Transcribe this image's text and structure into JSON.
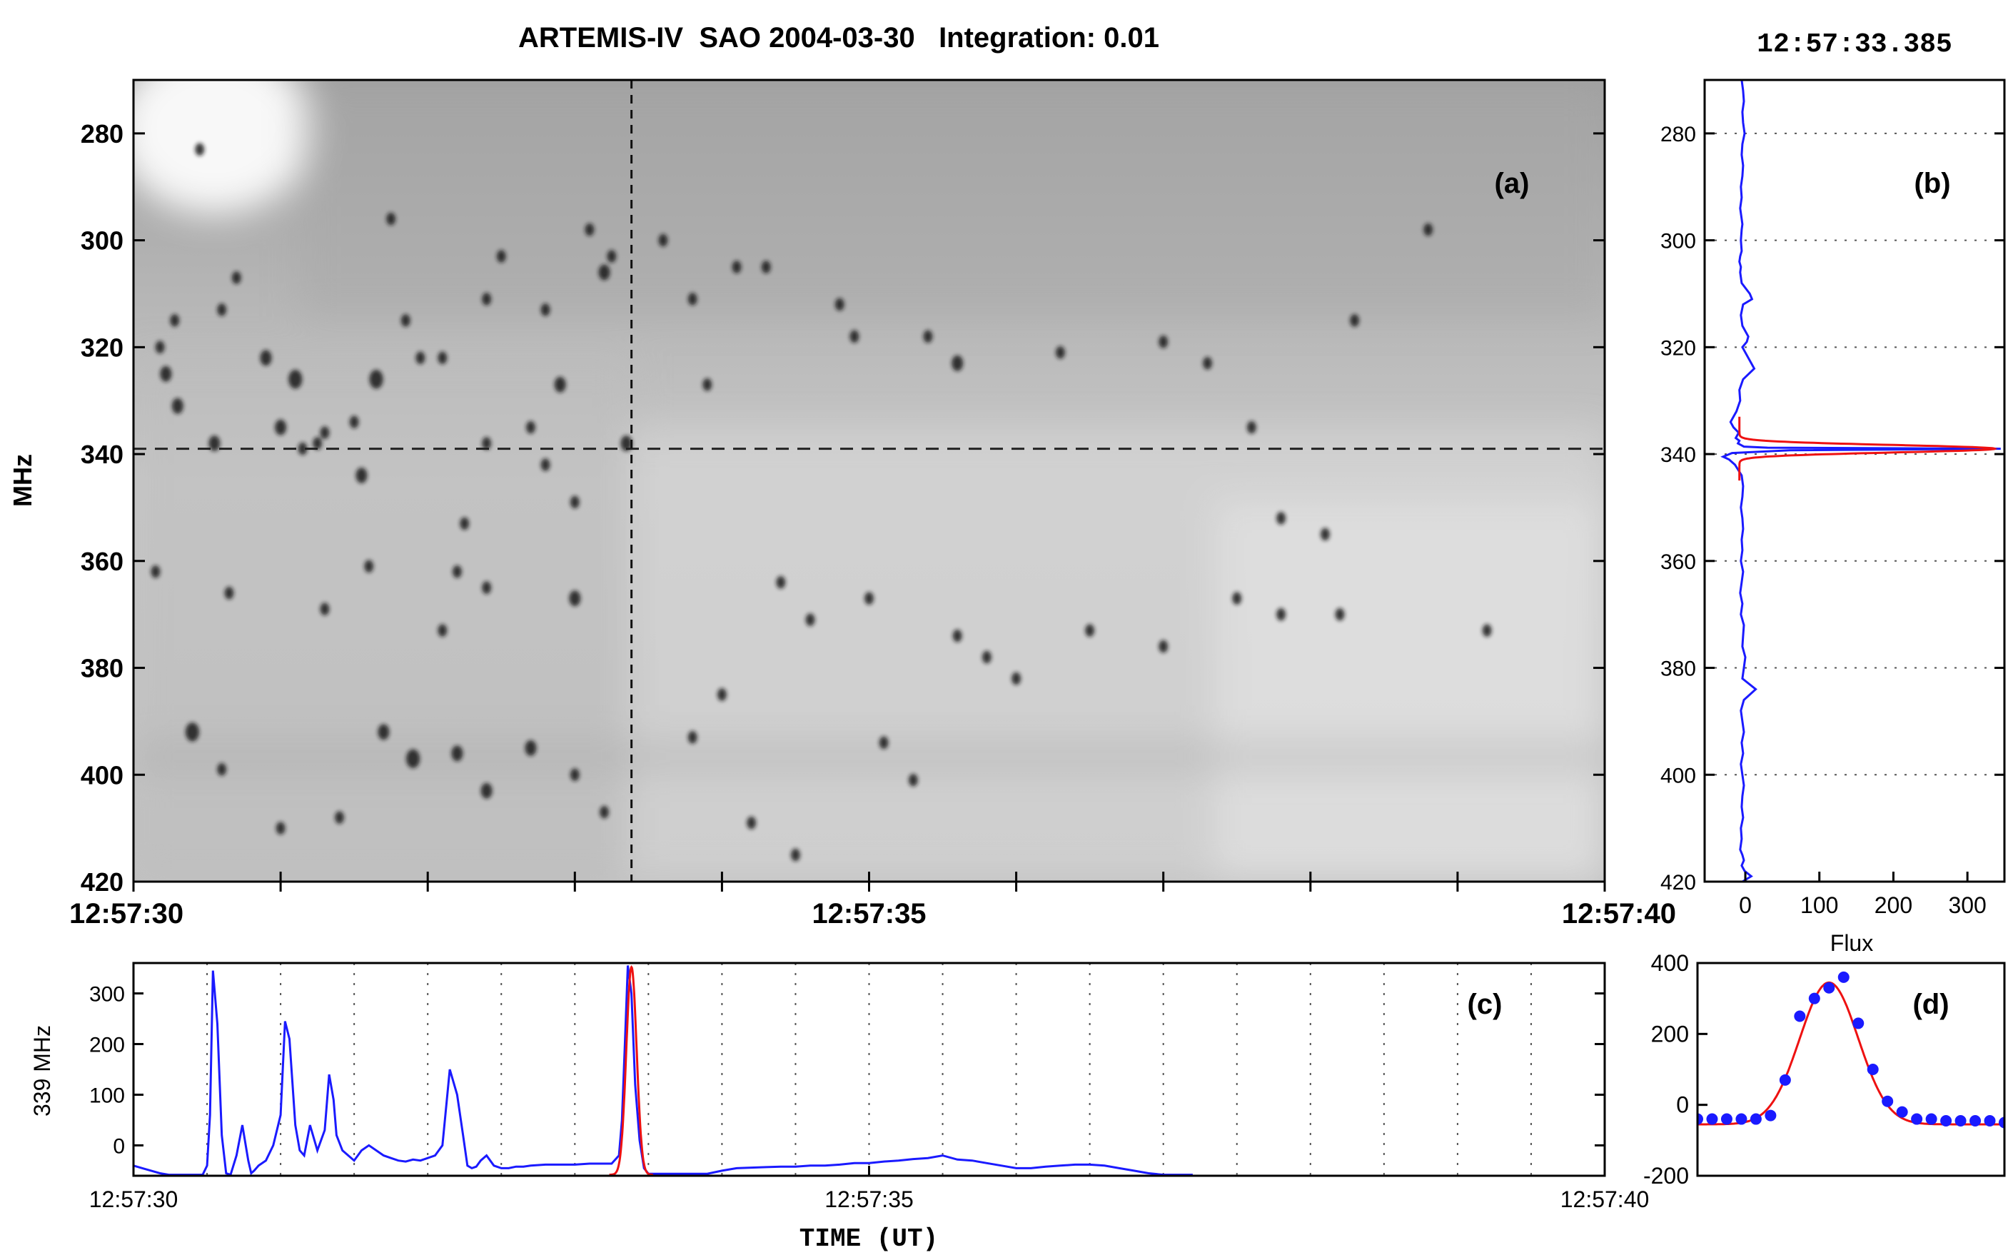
{
  "title": "ARTEMIS-IV  SAO 2004-03-30   Integration: 0.01",
  "timestamp": "12:57:33.385",
  "colors": {
    "series": "#1a1aff",
    "fit": "#ee1111",
    "axis": "#000000",
    "grid": "#555555"
  },
  "chart_data": [
    {
      "panel": "a",
      "label": "(a)",
      "type": "heatmap",
      "xlabel": "",
      "ylabel": "MHz",
      "xlim": [
        0,
        10
      ],
      "ylim": [
        270,
        420
      ],
      "x_ticks": [
        0,
        1,
        2,
        3,
        4,
        5,
        6,
        7,
        8,
        9,
        10
      ],
      "x_ticklabels": [
        {
          "x": 0,
          "label": "12:57:30"
        },
        {
          "x": 5,
          "label": "12:57:35"
        },
        {
          "x": 10,
          "label": "12:57:40"
        }
      ],
      "y_ticks": [
        280,
        300,
        320,
        340,
        360,
        380,
        400,
        420
      ],
      "crosshair": {
        "time_s": 3.385,
        "freq_mhz": 339
      },
      "colormap": "inverted grayscale",
      "spikes": [
        [
          0.45,
          283,
          4
        ],
        [
          0.6,
          313,
          4
        ],
        [
          0.28,
          315,
          4
        ],
        [
          0.18,
          320,
          4
        ],
        [
          0.22,
          325,
          5
        ],
        [
          0.3,
          331,
          5
        ],
        [
          0.55,
          338,
          5
        ],
        [
          0.7,
          307,
          4
        ],
        [
          0.9,
          322,
          5
        ],
        [
          1.0,
          335,
          5
        ],
        [
          1.1,
          326,
          6
        ],
        [
          1.25,
          338,
          4
        ],
        [
          1.15,
          339,
          4
        ],
        [
          1.3,
          336,
          4
        ],
        [
          1.5,
          334,
          4
        ],
        [
          1.55,
          344,
          5
        ],
        [
          1.65,
          326,
          6
        ],
        [
          1.75,
          296,
          4
        ],
        [
          1.85,
          315,
          4
        ],
        [
          1.95,
          322,
          4
        ],
        [
          2.1,
          322,
          4
        ],
        [
          2.4,
          311,
          4
        ],
        [
          2.8,
          313,
          4
        ],
        [
          2.25,
          353,
          4
        ],
        [
          2.5,
          303,
          4
        ],
        [
          2.4,
          338,
          4
        ],
        [
          2.7,
          335,
          4
        ],
        [
          2.9,
          327,
          5
        ],
        [
          2.8,
          342,
          4
        ],
        [
          3.2,
          306,
          5
        ],
        [
          3.0,
          349,
          4
        ],
        [
          1.6,
          361,
          4
        ],
        [
          2.2,
          362,
          4
        ],
        [
          2.4,
          365,
          4
        ],
        [
          3.0,
          367,
          5
        ],
        [
          1.3,
          369,
          4
        ],
        [
          0.65,
          366,
          4
        ],
        [
          0.15,
          362,
          4
        ],
        [
          0.4,
          392,
          6
        ],
        [
          0.6,
          399,
          4
        ],
        [
          1.7,
          392,
          5
        ],
        [
          1.9,
          397,
          6
        ],
        [
          2.2,
          396,
          5
        ],
        [
          2.4,
          403,
          5
        ],
        [
          2.7,
          395,
          5
        ],
        [
          3.0,
          400,
          4
        ],
        [
          3.2,
          407,
          4
        ],
        [
          1.0,
          410,
          4
        ],
        [
          1.4,
          408,
          4
        ],
        [
          3.25,
          303,
          4
        ],
        [
          3.1,
          298,
          4
        ],
        [
          3.6,
          300,
          4
        ],
        [
          3.8,
          311,
          4
        ],
        [
          3.35,
          338,
          5
        ],
        [
          4.1,
          305,
          4
        ],
        [
          4.3,
          305,
          4
        ],
        [
          4.8,
          312,
          4
        ],
        [
          4.9,
          318,
          4
        ],
        [
          5.4,
          318,
          4
        ],
        [
          5.6,
          323,
          5
        ],
        [
          6.3,
          321,
          4
        ],
        [
          7.0,
          319,
          4
        ],
        [
          7.3,
          323,
          4
        ],
        [
          7.6,
          335,
          4
        ],
        [
          7.8,
          352,
          4
        ],
        [
          8.1,
          355,
          4
        ],
        [
          6.5,
          373,
          4
        ],
        [
          7.0,
          376,
          4
        ],
        [
          7.5,
          367,
          4
        ],
        [
          7.8,
          370,
          4
        ],
        [
          8.2,
          370,
          4
        ],
        [
          9.2,
          373,
          4
        ],
        [
          8.3,
          315,
          4
        ],
        [
          5.0,
          367,
          4
        ],
        [
          5.6,
          374,
          4
        ],
        [
          4.4,
          364,
          4
        ],
        [
          4.6,
          371,
          4
        ],
        [
          4.0,
          385,
          4
        ],
        [
          3.8,
          393,
          4
        ],
        [
          5.1,
          394,
          4
        ],
        [
          5.3,
          401,
          4
        ],
        [
          4.2,
          409,
          4
        ],
        [
          4.5,
          415,
          4
        ],
        [
          5.8,
          378,
          4
        ],
        [
          6.0,
          382,
          4
        ],
        [
          8.8,
          298,
          4
        ],
        [
          3.9,
          327,
          4
        ],
        [
          2.1,
          373,
          4
        ]
      ]
    },
    {
      "panel": "b",
      "label": "(b)",
      "type": "line",
      "xlabel": "Flux",
      "ylabel": "",
      "xlim": [
        -55,
        350
      ],
      "ylim": [
        270,
        420
      ],
      "x_ticks": [
        0,
        100,
        200,
        300
      ],
      "y_ticks": [
        280,
        300,
        320,
        340,
        360,
        380,
        400,
        420
      ],
      "grid": true,
      "series": [
        {
          "x": [
            -5,
            -3,
            -2,
            -4,
            -3,
            -1,
            -4,
            -5,
            -3,
            -4,
            -6,
            -5,
            -7,
            -5,
            -4,
            -5,
            -6,
            -5,
            -7,
            -8,
            -6,
            -7,
            -5,
            6,
            9,
            -3,
            -6,
            -4,
            4,
            2,
            -4,
            4,
            12,
            -3,
            -8,
            -7,
            -12,
            -20,
            -16,
            -9,
            -13,
            -8,
            -10,
            -6,
            -2,
            30,
            345,
            60,
            -18,
            -30,
            -22,
            -14,
            -5,
            -3,
            -4,
            -6,
            -4,
            -3,
            -5,
            -4,
            -6,
            -3,
            -5,
            -7,
            -4,
            -6,
            -2,
            -3,
            -4,
            0,
            -2,
            -4,
            14,
            -2,
            -6,
            -4,
            -2,
            -5,
            -3,
            -6,
            -4,
            -2,
            -4,
            -5,
            -3,
            -6,
            -5,
            -7,
            -4,
            -2,
            -5,
            -1,
            8,
            -4
          ],
          "y": [
            270,
            272,
            274,
            276,
            278,
            280,
            282,
            284,
            286,
            288,
            290,
            292,
            294,
            296,
            297,
            298,
            300,
            302,
            303,
            304,
            305,
            306,
            308,
            310,
            311,
            312,
            314,
            316,
            318,
            319,
            320,
            322,
            324,
            326,
            328,
            330,
            332,
            334,
            335,
            336,
            337,
            337.5,
            338,
            338.3,
            338.6,
            338.8,
            339,
            339.3,
            339.8,
            340.5,
            341,
            342,
            344,
            346,
            348,
            350,
            352,
            354,
            356,
            358,
            360,
            362,
            364,
            366,
            368,
            370,
            372,
            374,
            376,
            378,
            380,
            382,
            384,
            386,
            388,
            390,
            392,
            394,
            396,
            398,
            400,
            402,
            404,
            406,
            408,
            410,
            412,
            414,
            415,
            416,
            417,
            418,
            419,
            420
          ]
        }
      ],
      "fit": {
        "center": 339,
        "amplitude": 345,
        "baseline": -8,
        "sigma": 0.7
      }
    },
    {
      "panel": "c",
      "label": "(c)",
      "type": "line",
      "xlabel": "TIME (UT)",
      "ylabel": "339 MHz",
      "xlim": [
        0,
        10
      ],
      "ylim": [
        -60,
        360
      ],
      "y_ticks": [
        0,
        100,
        200,
        300
      ],
      "x_ticklabels": [
        {
          "x": 0,
          "label": "12:57:30"
        },
        {
          "x": 5,
          "label": "12:57:35"
        },
        {
          "x": 10,
          "label": "12:57:40"
        }
      ],
      "grid": true,
      "series": [
        {
          "x": [
            0,
            0.06,
            0.12,
            0.18,
            0.24,
            0.3,
            0.36,
            0.42,
            0.47,
            0.5,
            0.52,
            0.54,
            0.57,
            0.6,
            0.63,
            0.66,
            0.7,
            0.74,
            0.78,
            0.8,
            0.82,
            0.85,
            0.9,
            0.95,
            1.0,
            1.03,
            1.06,
            1.1,
            1.13,
            1.16,
            1.2,
            1.25,
            1.3,
            1.33,
            1.36,
            1.38,
            1.42,
            1.46,
            1.5,
            1.55,
            1.6,
            1.65,
            1.7,
            1.75,
            1.8,
            1.85,
            1.9,
            1.95,
            2.0,
            2.05,
            2.1,
            2.15,
            2.2,
            2.24,
            2.27,
            2.3,
            2.33,
            2.36,
            2.4,
            2.45,
            2.5,
            2.55,
            2.6,
            2.65,
            2.7,
            2.8,
            2.9,
            3.0,
            3.1,
            3.2,
            3.25,
            3.3,
            3.32,
            3.34,
            3.36,
            3.385,
            3.41,
            3.44,
            3.47,
            3.5,
            3.55,
            3.6,
            3.7,
            3.8,
            3.9,
            4.0,
            4.1,
            4.2,
            4.3,
            4.4,
            4.5,
            4.6,
            4.7,
            4.8,
            4.9,
            5.0,
            5.1,
            5.2,
            5.3,
            5.4,
            5.5,
            5.6,
            5.7,
            5.8,
            5.9,
            6.0,
            6.1,
            6.2,
            6.3,
            6.4,
            6.5,
            6.6,
            6.7,
            6.8,
            6.9,
            7.0,
            7.1,
            7.2
          ],
          "y": [
            -40,
            -45,
            -50,
            -55,
            -58,
            -58,
            -58,
            -58,
            -58,
            -40,
            60,
            345,
            240,
            20,
            -55,
            -58,
            -20,
            40,
            -30,
            -55,
            -50,
            -40,
            -30,
            0,
            60,
            245,
            210,
            40,
            -10,
            -20,
            40,
            -10,
            30,
            140,
            90,
            20,
            -10,
            -20,
            -30,
            -10,
            0,
            -10,
            -20,
            -25,
            -30,
            -32,
            -28,
            -30,
            -25,
            -20,
            0,
            150,
            100,
            20,
            -40,
            -45,
            -42,
            -30,
            -20,
            -40,
            -45,
            -45,
            -42,
            -42,
            -40,
            -38,
            -38,
            -38,
            -36,
            -36,
            -36,
            -20,
            50,
            200,
            355,
            300,
            120,
            10,
            -45,
            -56,
            -56,
            -56,
            -56,
            -56,
            -56,
            -50,
            -45,
            -44,
            -43,
            -42,
            -42,
            -40,
            -40,
            -38,
            -35,
            -35,
            -32,
            -30,
            -27,
            -25,
            -20,
            -28,
            -30,
            -35,
            -40,
            -45,
            -45,
            -42,
            -40,
            -38,
            -38,
            -40,
            -45,
            -50,
            -55,
            -58,
            -58,
            -58
          ]
        }
      ],
      "fit": {
        "center": 3.385,
        "amplitude": 410,
        "baseline": -58,
        "sigma": 0.035
      }
    },
    {
      "panel": "d",
      "label": "(d)",
      "type": "scatter",
      "xlabel": "",
      "ylabel": "",
      "xlim": [
        0,
        21
      ],
      "ylim": [
        -200,
        400
      ],
      "y_ticks": [
        -200,
        0,
        200,
        400
      ],
      "series": [
        {
          "x": [
            0,
            1,
            2,
            3,
            4,
            5,
            6,
            7,
            8,
            9,
            10,
            11,
            12,
            13,
            14,
            15,
            16,
            17,
            18,
            19,
            20,
            21
          ],
          "y": [
            -40,
            -40,
            -40,
            -40,
            -40,
            -30,
            70,
            250,
            300,
            330,
            360,
            230,
            100,
            10,
            -20,
            -40,
            -40,
            -45,
            -45,
            -45,
            -45,
            -50
          ]
        }
      ],
      "fit": {
        "center": 9.0,
        "amplitude": 400,
        "baseline": -55,
        "sigma": 2.0
      }
    }
  ]
}
